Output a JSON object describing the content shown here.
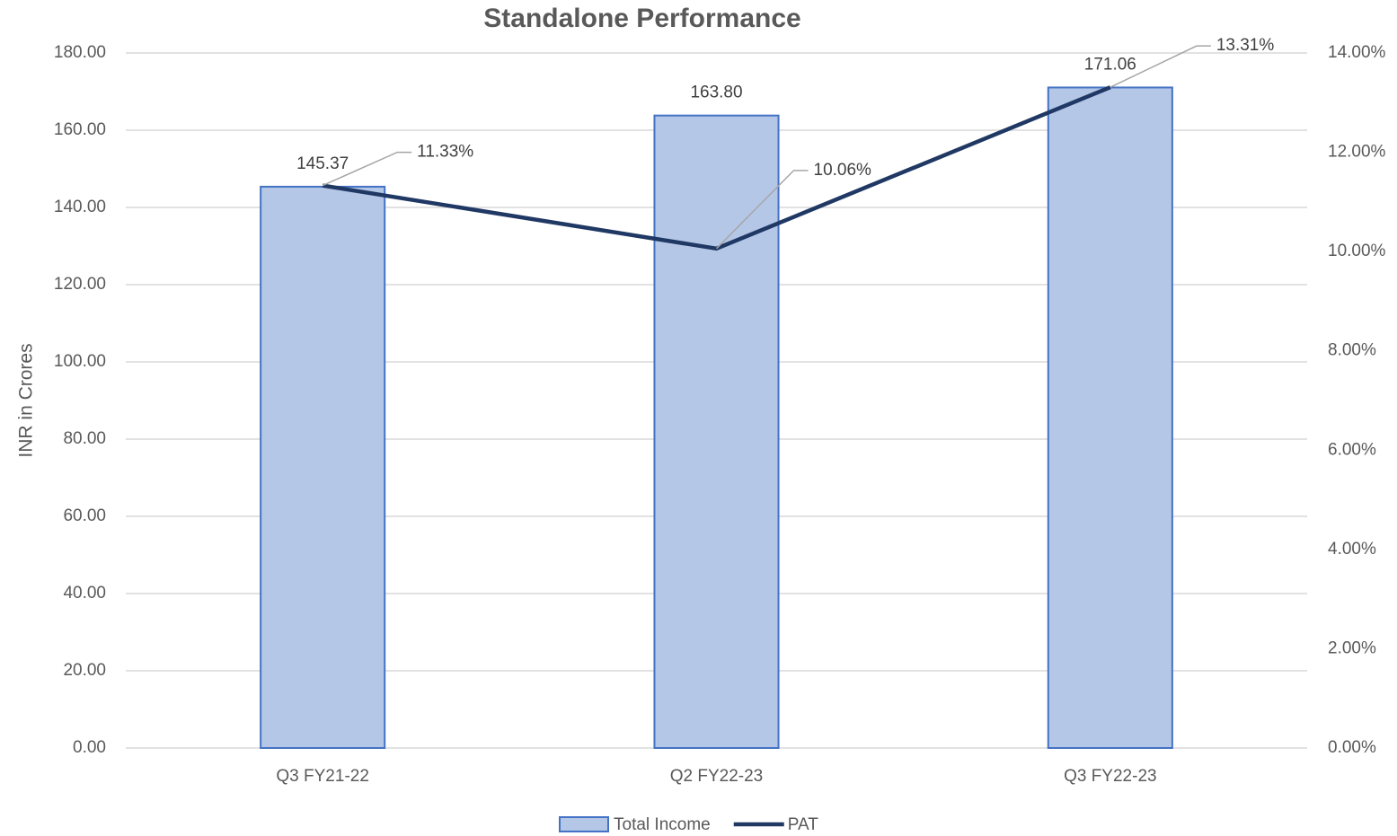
{
  "chart_data": {
    "type": "bar",
    "title": "Standalone Performance",
    "y_label": "INR in Crores",
    "categories": [
      "Q3 FY21-22",
      "Q2 FY22-23",
      "Q3 FY22-23"
    ],
    "series": [
      {
        "name": "Total Income",
        "type": "bar",
        "color": "#b4c7e7",
        "edge_color": "#4472c4",
        "values": [
          145.37,
          163.8,
          171.06
        ],
        "value_labels": [
          "145.37",
          "163.80",
          "171.06"
        ]
      },
      {
        "name": "PAT",
        "type": "line",
        "axis": "y2",
        "color": "#203864",
        "values": [
          11.33,
          10.06,
          13.31
        ],
        "value_labels": [
          "11.33%",
          "10.06%",
          "13.31%"
        ]
      }
    ],
    "ylim": [
      0,
      180
    ],
    "yticks": [
      {
        "value": 0,
        "label": "0.00"
      },
      {
        "value": 20,
        "label": "20.00"
      },
      {
        "value": 40,
        "label": "40.00"
      },
      {
        "value": 60,
        "label": "60.00"
      },
      {
        "value": 80,
        "label": "80.00"
      },
      {
        "value": 100,
        "label": "100.00"
      },
      {
        "value": 120,
        "label": "120.00"
      },
      {
        "value": 140,
        "label": "140.00"
      },
      {
        "value": 160,
        "label": "160.00"
      },
      {
        "value": 180,
        "label": "180.00"
      }
    ],
    "y2lim": [
      0,
      14
    ],
    "y2ticks": [
      {
        "value": 0,
        "label": "0.00%"
      },
      {
        "value": 2,
        "label": "2.00%"
      },
      {
        "value": 4,
        "label": "4.00%"
      },
      {
        "value": 6,
        "label": "6.00%"
      },
      {
        "value": 8,
        "label": "8.00%"
      },
      {
        "value": 10,
        "label": "10.00%"
      },
      {
        "value": 12,
        "label": "12.00%"
      },
      {
        "value": 14,
        "label": "14.00%"
      }
    ],
    "grid": true,
    "legend": "bottom"
  }
}
